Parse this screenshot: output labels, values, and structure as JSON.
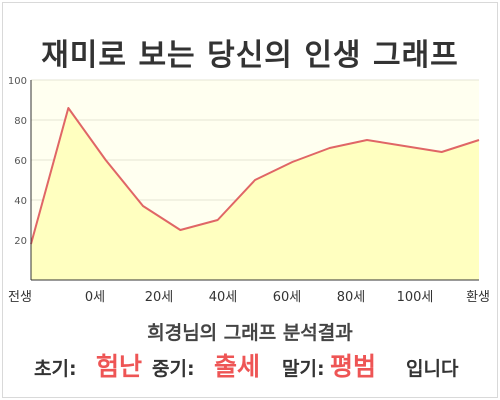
{
  "title": "재미로 보는 당신의 인생 그래프",
  "chart_data": {
    "type": "area",
    "x_tick_labels": [
      "전생",
      "0세",
      "20세",
      "40세",
      "60세",
      "80세",
      "100세",
      "환생"
    ],
    "x": [
      -10,
      0,
      10,
      20,
      30,
      40,
      50,
      60,
      70,
      80,
      90,
      100,
      110
    ],
    "values": [
      18,
      86,
      60,
      37,
      25,
      30,
      50,
      59,
      66,
      70,
      67,
      64,
      70
    ],
    "ylim": [
      0,
      100
    ],
    "y_ticks": [
      20,
      40,
      60,
      80,
      100
    ],
    "grid": true,
    "line_color": "#e06666",
    "fill_color": "#ffffc0",
    "plot_bg": "#fffff0"
  },
  "analysis": {
    "title": "희경님의 그래프 분석결과",
    "early_label": "초기:",
    "early_value": "험난",
    "middle_label": "중기:",
    "middle_value": "출세",
    "late_label": "말기:",
    "late_value": "평범",
    "suffix": "입니다"
  }
}
